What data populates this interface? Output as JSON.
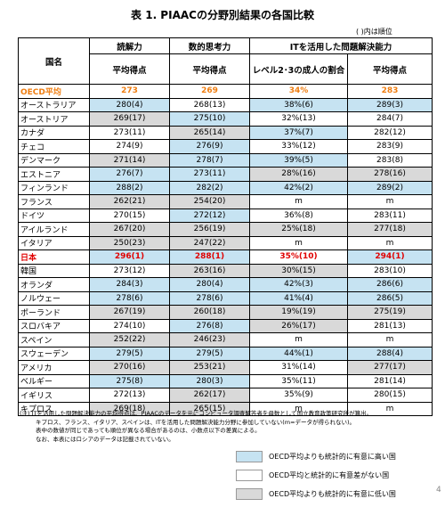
{
  "title": "表 1. PIAACの分野別結果の各国比較",
  "rank_note": "( )内は順位",
  "header": {
    "row1": [
      "国名",
      "読解力",
      "数的思考力",
      "ITを活用した問題解決能力"
    ],
    "row2": [
      "平均得点",
      "平均得点",
      "レベル2･3の成人の割合",
      "平均得点"
    ]
  },
  "legend": [
    {
      "color": "#c6e3f2",
      "label": "OECD平均よりも統計的に有意に高い国"
    },
    {
      "color": "#ffffff",
      "label": "OECD平均と統計的に有意差がない国"
    },
    {
      "color": "#d9d9d9",
      "label": "OECD平均よりも統計的に有意に低い国"
    }
  ],
  "table": {
    "rows": [
      {
        "cells": [
          "OECD平均",
          "273",
          "269",
          "34%",
          "283"
        ],
        "levels": [
          null,
          null,
          null,
          null,
          null
        ],
        "text_color": "#ef7d10"
      },
      {
        "cells": [
          "オーストラリア",
          "280(4)",
          "268(13)",
          "38%(6)",
          "289(3)"
        ],
        "levels": [
          null,
          0,
          1,
          0,
          0
        ]
      },
      {
        "cells": [
          "オーストリア",
          "269(17)",
          "275(10)",
          "32%(13)",
          "284(7)"
        ],
        "levels": [
          null,
          2,
          0,
          1,
          1
        ]
      },
      {
        "cells": [
          "カナダ",
          "273(11)",
          "265(14)",
          "37%(7)",
          "282(12)"
        ],
        "levels": [
          null,
          1,
          2,
          0,
          1
        ]
      },
      {
        "cells": [
          "チェコ",
          "274(9)",
          "276(9)",
          "33%(12)",
          "283(9)"
        ],
        "levels": [
          null,
          1,
          0,
          1,
          1
        ]
      },
      {
        "cells": [
          "デンマーク",
          "271(14)",
          "278(7)",
          "39%(5)",
          "283(8)"
        ],
        "levels": [
          null,
          2,
          0,
          0,
          1
        ]
      },
      {
        "cells": [
          "エストニア",
          "276(7)",
          "273(11)",
          "28%(16)",
          "278(16)"
        ],
        "levels": [
          null,
          0,
          0,
          2,
          2
        ]
      },
      {
        "cells": [
          "フィンランド",
          "288(2)",
          "282(2)",
          "42%(2)",
          "289(2)"
        ],
        "levels": [
          null,
          0,
          0,
          0,
          0
        ]
      },
      {
        "cells": [
          "フランス",
          "262(21)",
          "254(20)",
          "m",
          "m"
        ],
        "levels": [
          null,
          2,
          2,
          1,
          1
        ]
      },
      {
        "cells": [
          "ドイツ",
          "270(15)",
          "272(12)",
          "36%(8)",
          "283(11)"
        ],
        "levels": [
          null,
          1,
          0,
          1,
          1
        ]
      },
      {
        "cells": [
          "アイルランド",
          "267(20)",
          "256(19)",
          "25%(18)",
          "277(18)"
        ],
        "levels": [
          null,
          2,
          2,
          2,
          2
        ]
      },
      {
        "cells": [
          "イタリア",
          "250(23)",
          "247(22)",
          "m",
          "m"
        ],
        "levels": [
          null,
          2,
          2,
          1,
          1
        ]
      },
      {
        "cells": [
          "日本",
          "296(1)",
          "288(1)",
          "35%(10)",
          "294(1)"
        ],
        "levels": [
          null,
          0,
          0,
          1,
          0
        ],
        "text_color": "#e00000"
      },
      {
        "cells": [
          "韓国",
          "273(12)",
          "263(16)",
          "30%(15)",
          "283(10)"
        ],
        "levels": [
          null,
          1,
          2,
          2,
          1
        ]
      },
      {
        "cells": [
          "オランダ",
          "284(3)",
          "280(4)",
          "42%(3)",
          "286(6)"
        ],
        "levels": [
          null,
          0,
          0,
          0,
          0
        ]
      },
      {
        "cells": [
          "ノルウェー",
          "278(6)",
          "278(6)",
          "41%(4)",
          "286(5)"
        ],
        "levels": [
          null,
          0,
          0,
          0,
          0
        ]
      },
      {
        "cells": [
          "ポーランド",
          "267(19)",
          "260(18)",
          "19%(19)",
          "275(19)"
        ],
        "levels": [
          null,
          2,
          2,
          2,
          2
        ]
      },
      {
        "cells": [
          "スロバキア",
          "274(10)",
          "276(8)",
          "26%(17)",
          "281(13)"
        ],
        "levels": [
          null,
          1,
          0,
          2,
          1
        ]
      },
      {
        "cells": [
          "スペイン",
          "252(22)",
          "246(23)",
          "m",
          "m"
        ],
        "levels": [
          null,
          2,
          2,
          1,
          1
        ]
      },
      {
        "cells": [
          "スウェーデン",
          "279(5)",
          "279(5)",
          "44%(1)",
          "288(4)"
        ],
        "levels": [
          null,
          0,
          0,
          0,
          0
        ]
      },
      {
        "cells": [
          "アメリカ",
          "270(16)",
          "253(21)",
          "31%(14)",
          "277(17)"
        ],
        "levels": [
          null,
          2,
          2,
          1,
          2
        ]
      },
      {
        "cells": [
          "ベルギー",
          "275(8)",
          "280(3)",
          "35%(11)",
          "281(14)"
        ],
        "levels": [
          null,
          0,
          0,
          1,
          1
        ]
      },
      {
        "cells": [
          "イギリス",
          "272(13)",
          "262(17)",
          "35%(9)",
          "280(15)"
        ],
        "levels": [
          null,
          1,
          2,
          1,
          1
        ]
      },
      {
        "cells": [
          "キプロス",
          "269(18)",
          "265(15)",
          "m",
          "m"
        ],
        "levels": [
          null,
          2,
          2,
          1,
          1
        ]
      }
    ]
  },
  "notes": [
    "(注) ITを活用した問題解決能力の平均得点は、PIAACのデータを元にコンピュータ調査解答者を母数として国立教育政策研究所が算出。",
    "キプロス、フランス、イタリア、スペインは、ITを活用した問題解決能力分野に参加していない(m=データが得られない)。",
    "表中の数値が同じであっても順位が異なる場合があるのは、小数点以下の差異による。",
    "なお、本表にはロシアのデータは記載されていない。"
  ],
  "page_number": "4"
}
